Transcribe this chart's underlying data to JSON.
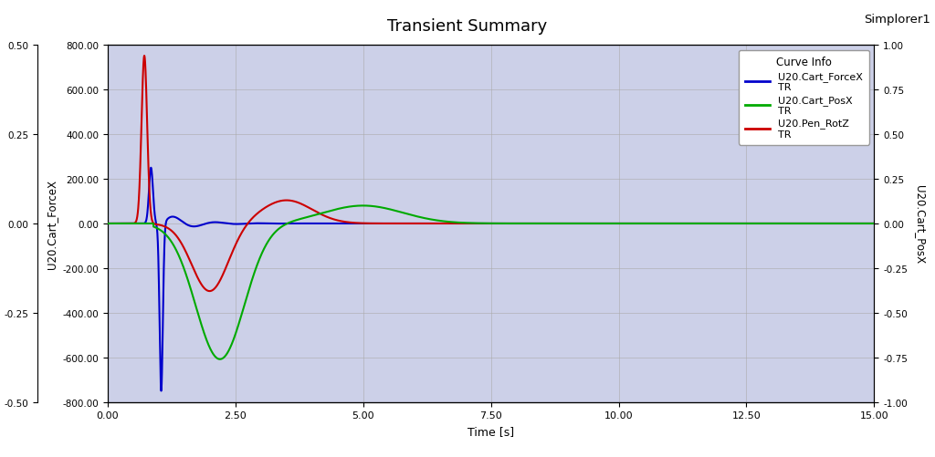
{
  "title": "Transient Summary",
  "simplorer_label": "Simplorer1",
  "xlabel": "Time [s]",
  "ylabel_forcex": "U20.Cart_ForceX",
  "ylabel_rotz": "U20.Pen_RotZ",
  "ylabel_posx": "U20.Cart_PosX",
  "xlim": [
    0,
    15
  ],
  "ylim_forcex": [
    -800,
    800
  ],
  "ylim_posx": [
    -1.0,
    1.0
  ],
  "ylim_rotz": [
    -0.5,
    0.5
  ],
  "bg_plot_color": "#ccd0e8",
  "bg_left_color": "#f2b8b8",
  "bg_right_color": "#c8ecd4",
  "grid_color": "#aaaaaa",
  "curve_info_title": "Curve Info",
  "legend_entries": [
    {
      "label": "U20.Cart_ForceX",
      "sub": "TR",
      "color": "#0000cc",
      "lw": 1.5
    },
    {
      "label": "U20.Cart_PosX",
      "sub": "TR",
      "color": "#00aa00",
      "lw": 1.5
    },
    {
      "label": "U20.Pen_RotZ",
      "sub": "TR",
      "color": "#cc0000",
      "lw": 1.5
    }
  ],
  "xticks": [
    0.0,
    2.5,
    5.0,
    7.5,
    10.0,
    12.5,
    15.0
  ],
  "xticklabels": [
    "0.00",
    "2.50",
    "5.00",
    "7.50",
    "10.00",
    "12.50",
    "15.00"
  ],
  "yticks_forcex": [
    -800,
    -600,
    -400,
    -200,
    0,
    200,
    400,
    600,
    800
  ],
  "yticklabels_forcex": [
    "-800.00",
    "-600.00",
    "-400.00",
    "-200.00",
    "0.00",
    "200.00",
    "400.00",
    "600.00",
    "800.00"
  ],
  "yticks_rotz": [
    -0.5,
    -0.25,
    0.0,
    0.25,
    0.5
  ],
  "yticklabels_rotz": [
    "-0.50",
    "-0.25",
    "0.00",
    "0.25",
    "0.50"
  ],
  "yticks_posx": [
    -1.0,
    -0.75,
    -0.5,
    -0.25,
    0.0,
    0.25,
    0.5,
    0.75,
    1.0
  ],
  "yticklabels_posx": [
    "-1.00",
    "-0.75",
    "-0.50",
    "-0.25",
    "0.00",
    "0.25",
    "0.50",
    "0.75",
    "1.00"
  ]
}
